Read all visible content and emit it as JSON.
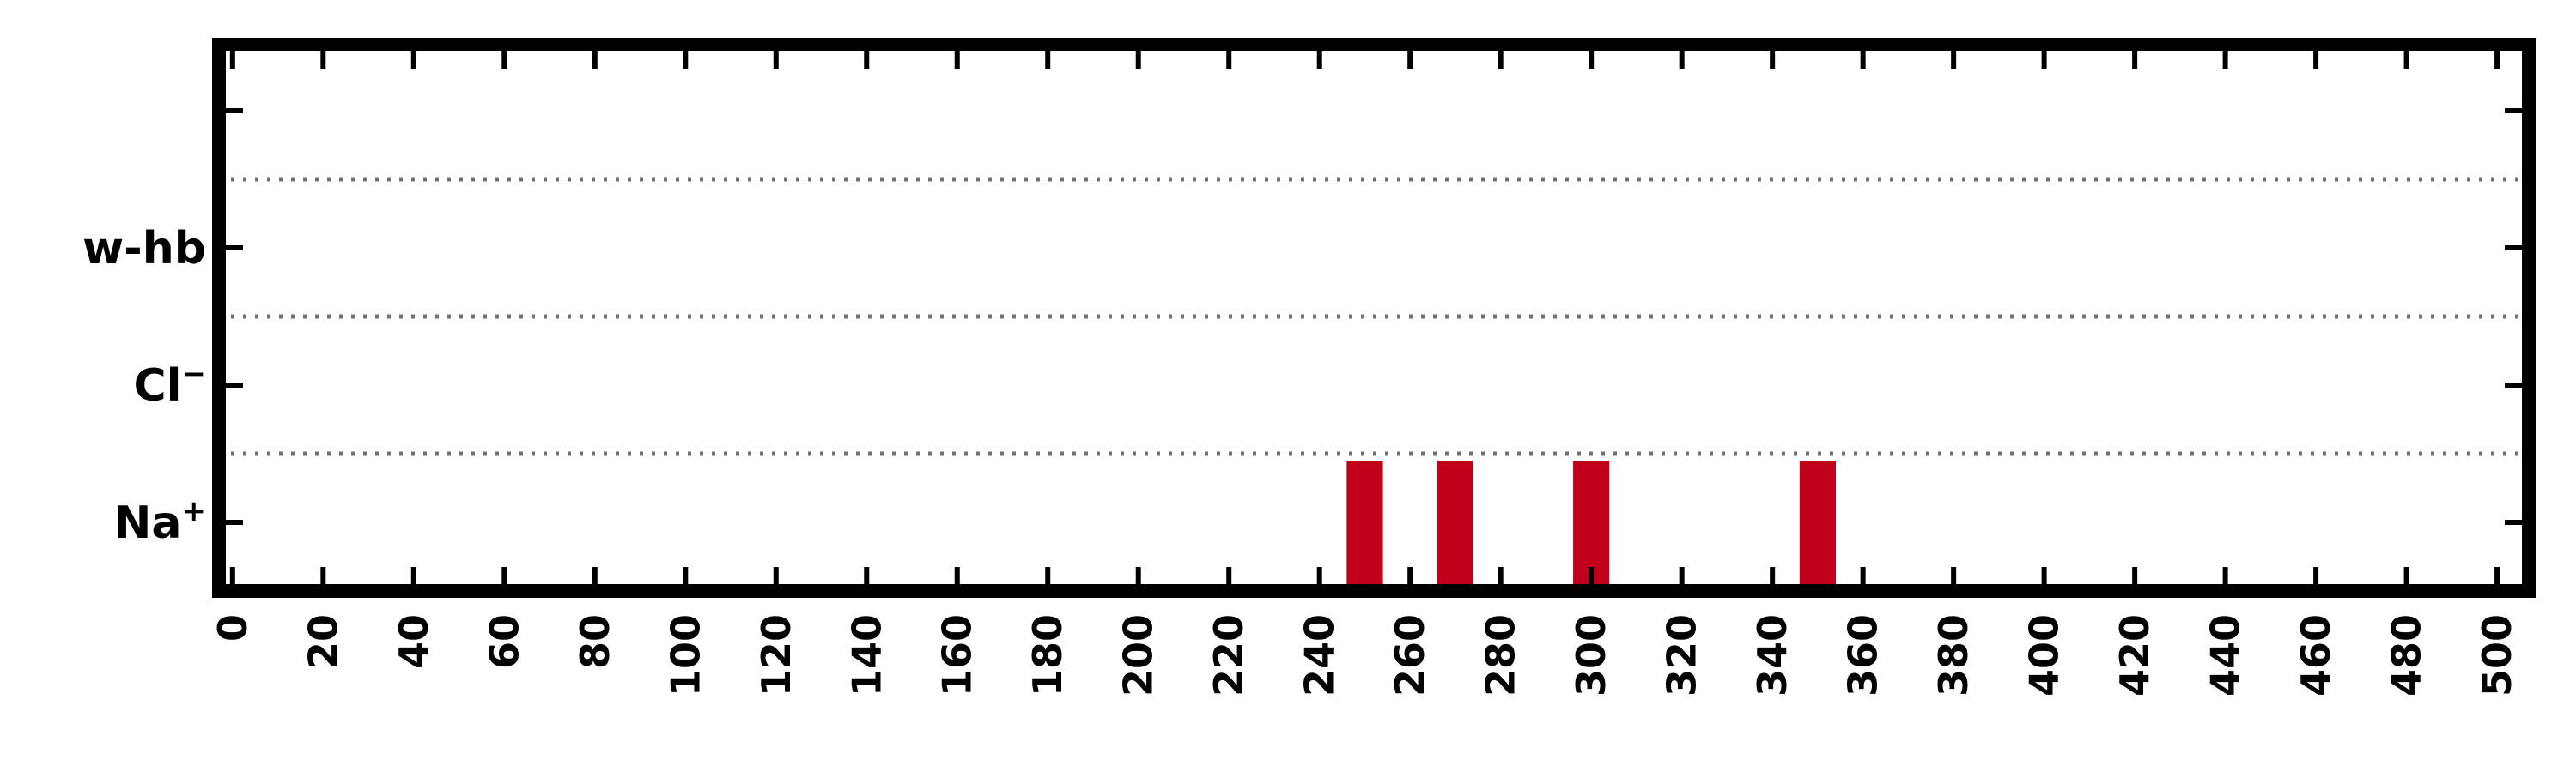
{
  "chart_data": {
    "type": "bar",
    "title": "",
    "xlabel": "",
    "ylabel": "",
    "xlim": [
      -3,
      507
    ],
    "x_ticks": [
      0,
      20,
      40,
      60,
      80,
      100,
      120,
      140,
      160,
      180,
      200,
      220,
      240,
      260,
      280,
      300,
      320,
      340,
      360,
      380,
      400,
      420,
      440,
      460,
      480,
      500
    ],
    "y_categories": [
      {
        "label": "Na",
        "sup": "+"
      },
      {
        "label": "Cl",
        "sup": "−"
      },
      {
        "label": "w-hb",
        "sup": ""
      }
    ],
    "y_extra_tick": true,
    "grid": "dotted horizontal separators between categories",
    "series": [
      {
        "category": "Na",
        "color": "#c0001a",
        "events": [
          {
            "start": 246,
            "end": 254
          },
          {
            "start": 266,
            "end": 274
          },
          {
            "start": 296,
            "end": 304
          },
          {
            "start": 346,
            "end": 354
          }
        ]
      },
      {
        "category": "Cl",
        "color": "#c0001a",
        "events": []
      },
      {
        "category": "w-hb",
        "color": "#c0001a",
        "events": []
      }
    ]
  }
}
